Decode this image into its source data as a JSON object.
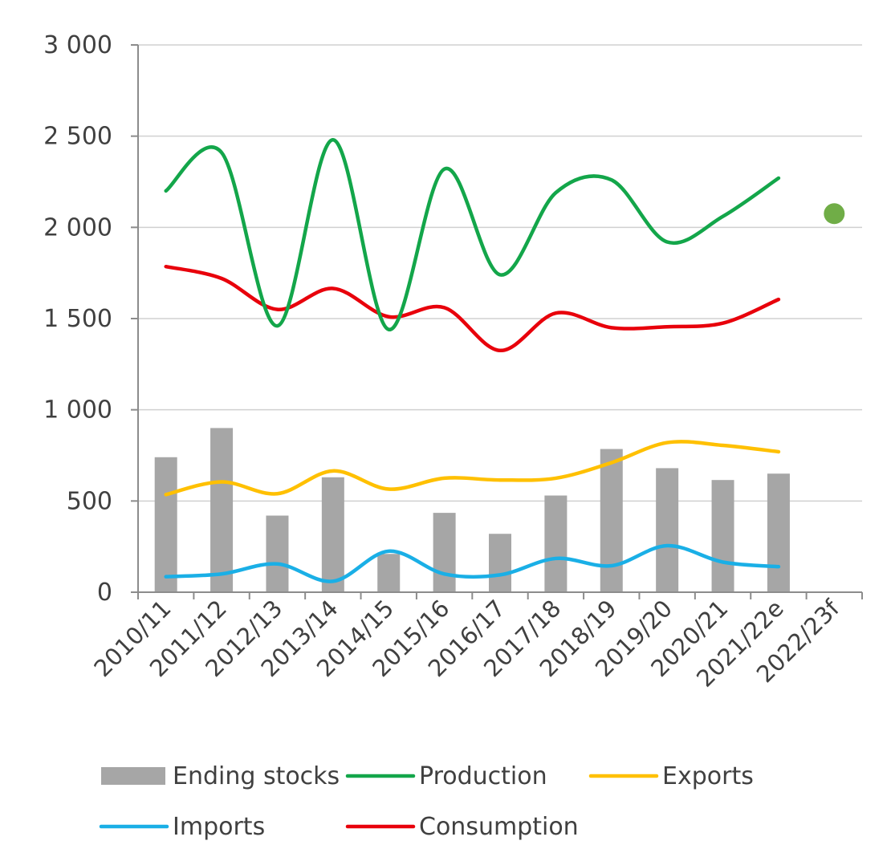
{
  "chart_data": {
    "type": "bar",
    "categories": [
      "2010/11",
      "2011/12",
      "2012/13",
      "2013/14",
      "2014/15",
      "2015/16",
      "2016/17",
      "2017/18",
      "2018/19",
      "2019/20",
      "2020/21",
      "2021/22e",
      "2022/23f"
    ],
    "ylim": [
      0,
      3000
    ],
    "yticks": [
      0,
      500,
      1000,
      1500,
      2000,
      2500,
      3000
    ],
    "ytick_labels": [
      "0",
      "500",
      "1 000",
      "1 500",
      "2 000",
      "2 500",
      "3 000"
    ],
    "grid": true,
    "legend_position": "bottom",
    "series": [
      {
        "name": "Ending stocks",
        "type": "bar",
        "color": "#a6a6a6",
        "values": [
          740,
          900,
          420,
          630,
          210,
          435,
          320,
          530,
          785,
          680,
          615,
          650,
          null
        ]
      },
      {
        "name": "Production",
        "type": "line",
        "color": "#13a64a",
        "values": [
          2200,
          2410,
          1460,
          2480,
          1440,
          2320,
          1740,
          2190,
          2260,
          1920,
          2060,
          2270,
          null
        ]
      },
      {
        "name": "Exports",
        "type": "line",
        "color": "#ffc000",
        "values": [
          535,
          605,
          540,
          665,
          565,
          625,
          615,
          625,
          710,
          820,
          805,
          770,
          null
        ]
      },
      {
        "name": "Imports",
        "type": "line",
        "color": "#1aafe6",
        "values": [
          85,
          100,
          155,
          60,
          225,
          100,
          95,
          185,
          145,
          255,
          165,
          140,
          null
        ]
      },
      {
        "name": "Consumption",
        "type": "line",
        "color": "#e8000b",
        "values": [
          1785,
          1720,
          1550,
          1665,
          1510,
          1560,
          1325,
          1530,
          1450,
          1455,
          1475,
          1605,
          null
        ]
      }
    ],
    "forecast_point": {
      "category": "2022/23f",
      "value": 2075,
      "color": "#70ad47"
    }
  }
}
